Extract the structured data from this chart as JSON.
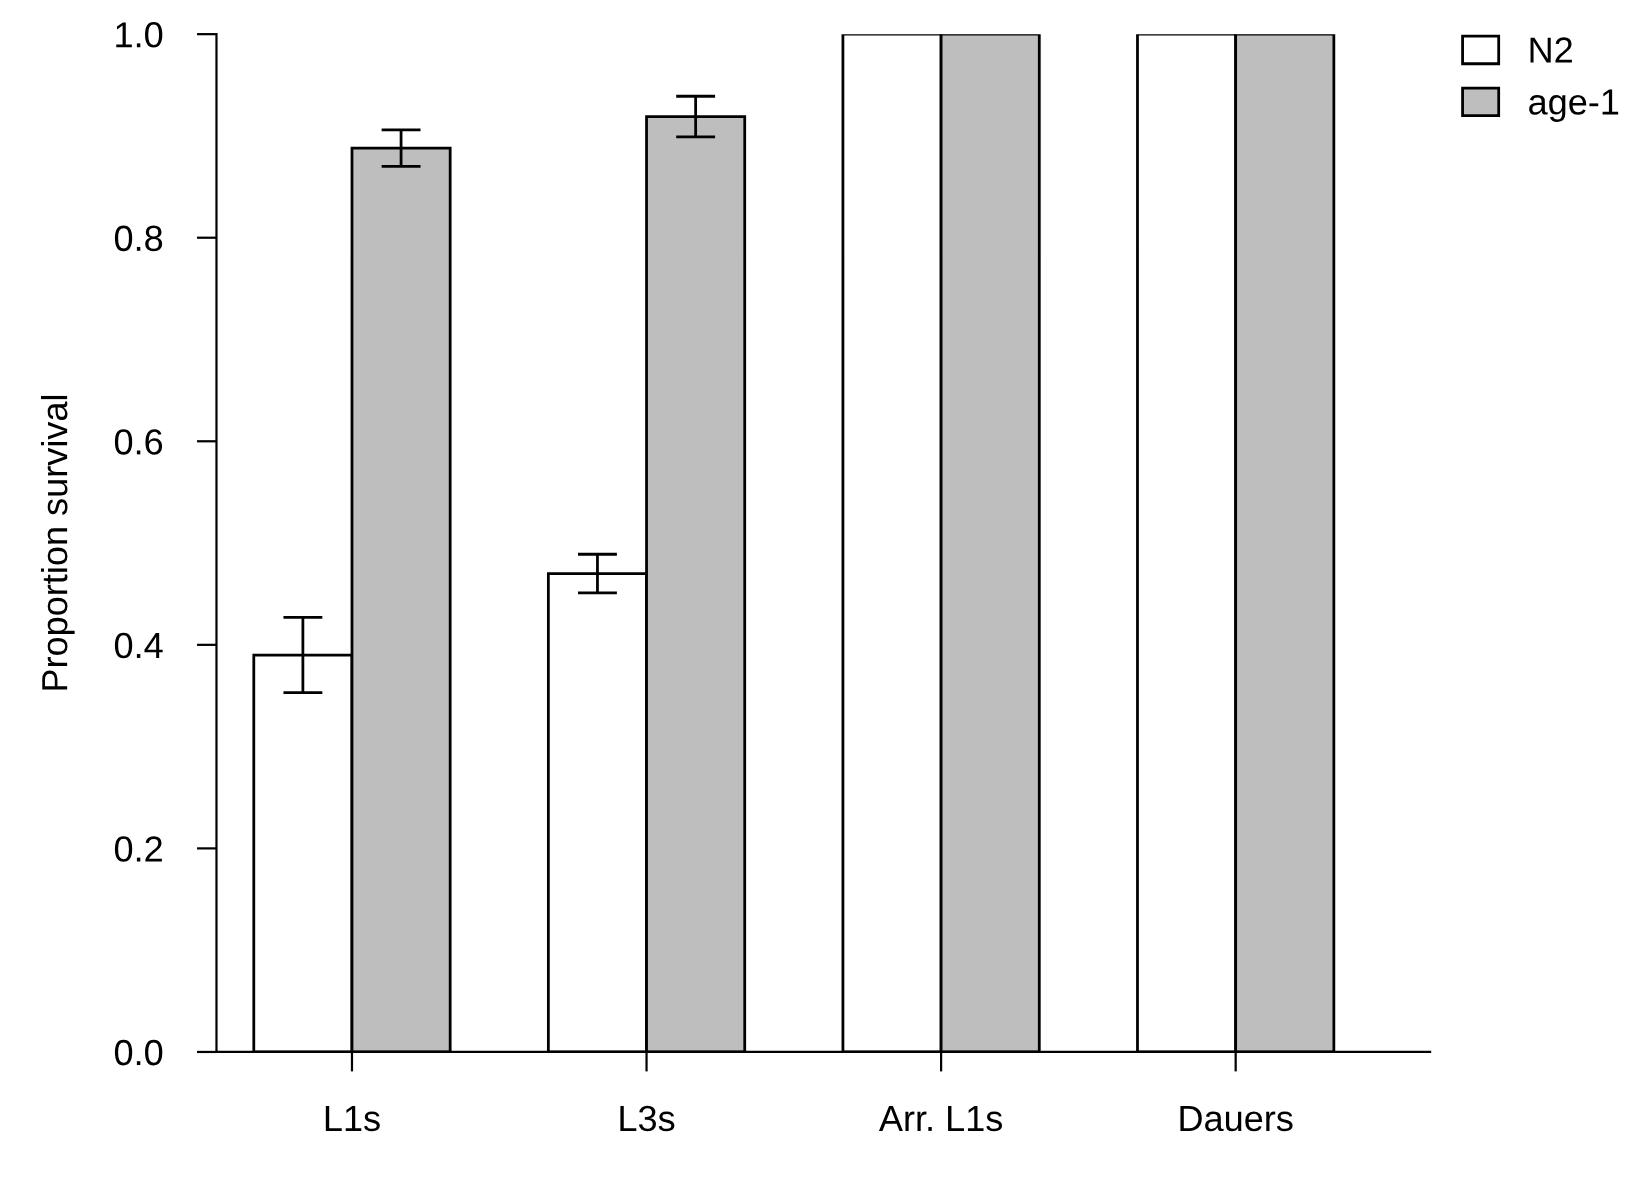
{
  "chart_data": {
    "type": "bar",
    "ylabel": "Proportion survival",
    "categories": [
      "L1s",
      "L3s",
      "Arr. L1s",
      "Dauers"
    ],
    "series": [
      {
        "name": "N2",
        "color": "#ffffff",
        "values": [
          0.39,
          0.47,
          1.0,
          1.0
        ],
        "errors": [
          0.037,
          0.019,
          null,
          null
        ]
      },
      {
        "name": "age-1",
        "color": "#bebebe",
        "values": [
          0.888,
          0.919,
          1.0,
          1.0
        ],
        "errors": [
          0.018,
          0.02,
          null,
          null
        ]
      }
    ],
    "ylim": [
      0,
      1
    ],
    "yticks": [
      {
        "value": 0,
        "label": "0.0"
      },
      0.2,
      0.4,
      0.6,
      0.8,
      {
        "value": 1,
        "label": "1.0"
      }
    ],
    "grid": false,
    "legend": "top right"
  }
}
